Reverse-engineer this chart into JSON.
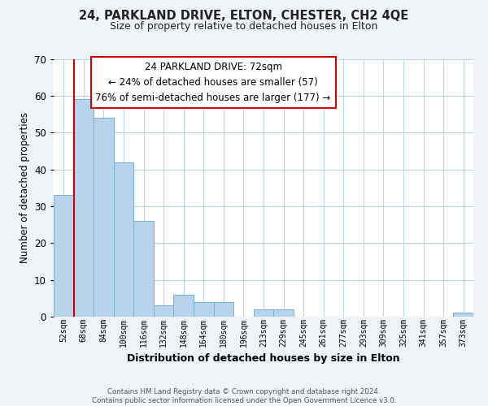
{
  "title": "24, PARKLAND DRIVE, ELTON, CHESTER, CH2 4QE",
  "subtitle": "Size of property relative to detached houses in Elton",
  "xlabel": "Distribution of detached houses by size in Elton",
  "ylabel": "Number of detached properties",
  "bar_labels": [
    "52sqm",
    "68sqm",
    "84sqm",
    "100sqm",
    "116sqm",
    "132sqm",
    "148sqm",
    "164sqm",
    "180sqm",
    "196sqm",
    "213sqm",
    "229sqm",
    "245sqm",
    "261sqm",
    "277sqm",
    "293sqm",
    "309sqm",
    "325sqm",
    "341sqm",
    "357sqm",
    "373sqm"
  ],
  "bar_values": [
    33,
    59,
    54,
    42,
    26,
    3,
    6,
    4,
    4,
    0,
    2,
    2,
    0,
    0,
    0,
    0,
    0,
    0,
    0,
    0,
    1
  ],
  "bar_color": "#b8d4ec",
  "bar_edge_color": "#7aaed0",
  "vline_color": "#cc0000",
  "ylim": [
    0,
    70
  ],
  "yticks": [
    0,
    10,
    20,
    30,
    40,
    50,
    60,
    70
  ],
  "annotation_title": "24 PARKLAND DRIVE: 72sqm",
  "annotation_line1": "← 24% of detached houses are smaller (57)",
  "annotation_line2": "76% of semi-detached houses are larger (177) →",
  "footer_line1": "Contains HM Land Registry data © Crown copyright and database right 2024.",
  "footer_line2": "Contains public sector information licensed under the Open Government Licence v3.0.",
  "bg_color": "#f0f4f8",
  "plot_bg_color": "#ffffff",
  "grid_color": "#c0d4e8",
  "annotation_box_edge": "#cc0000"
}
